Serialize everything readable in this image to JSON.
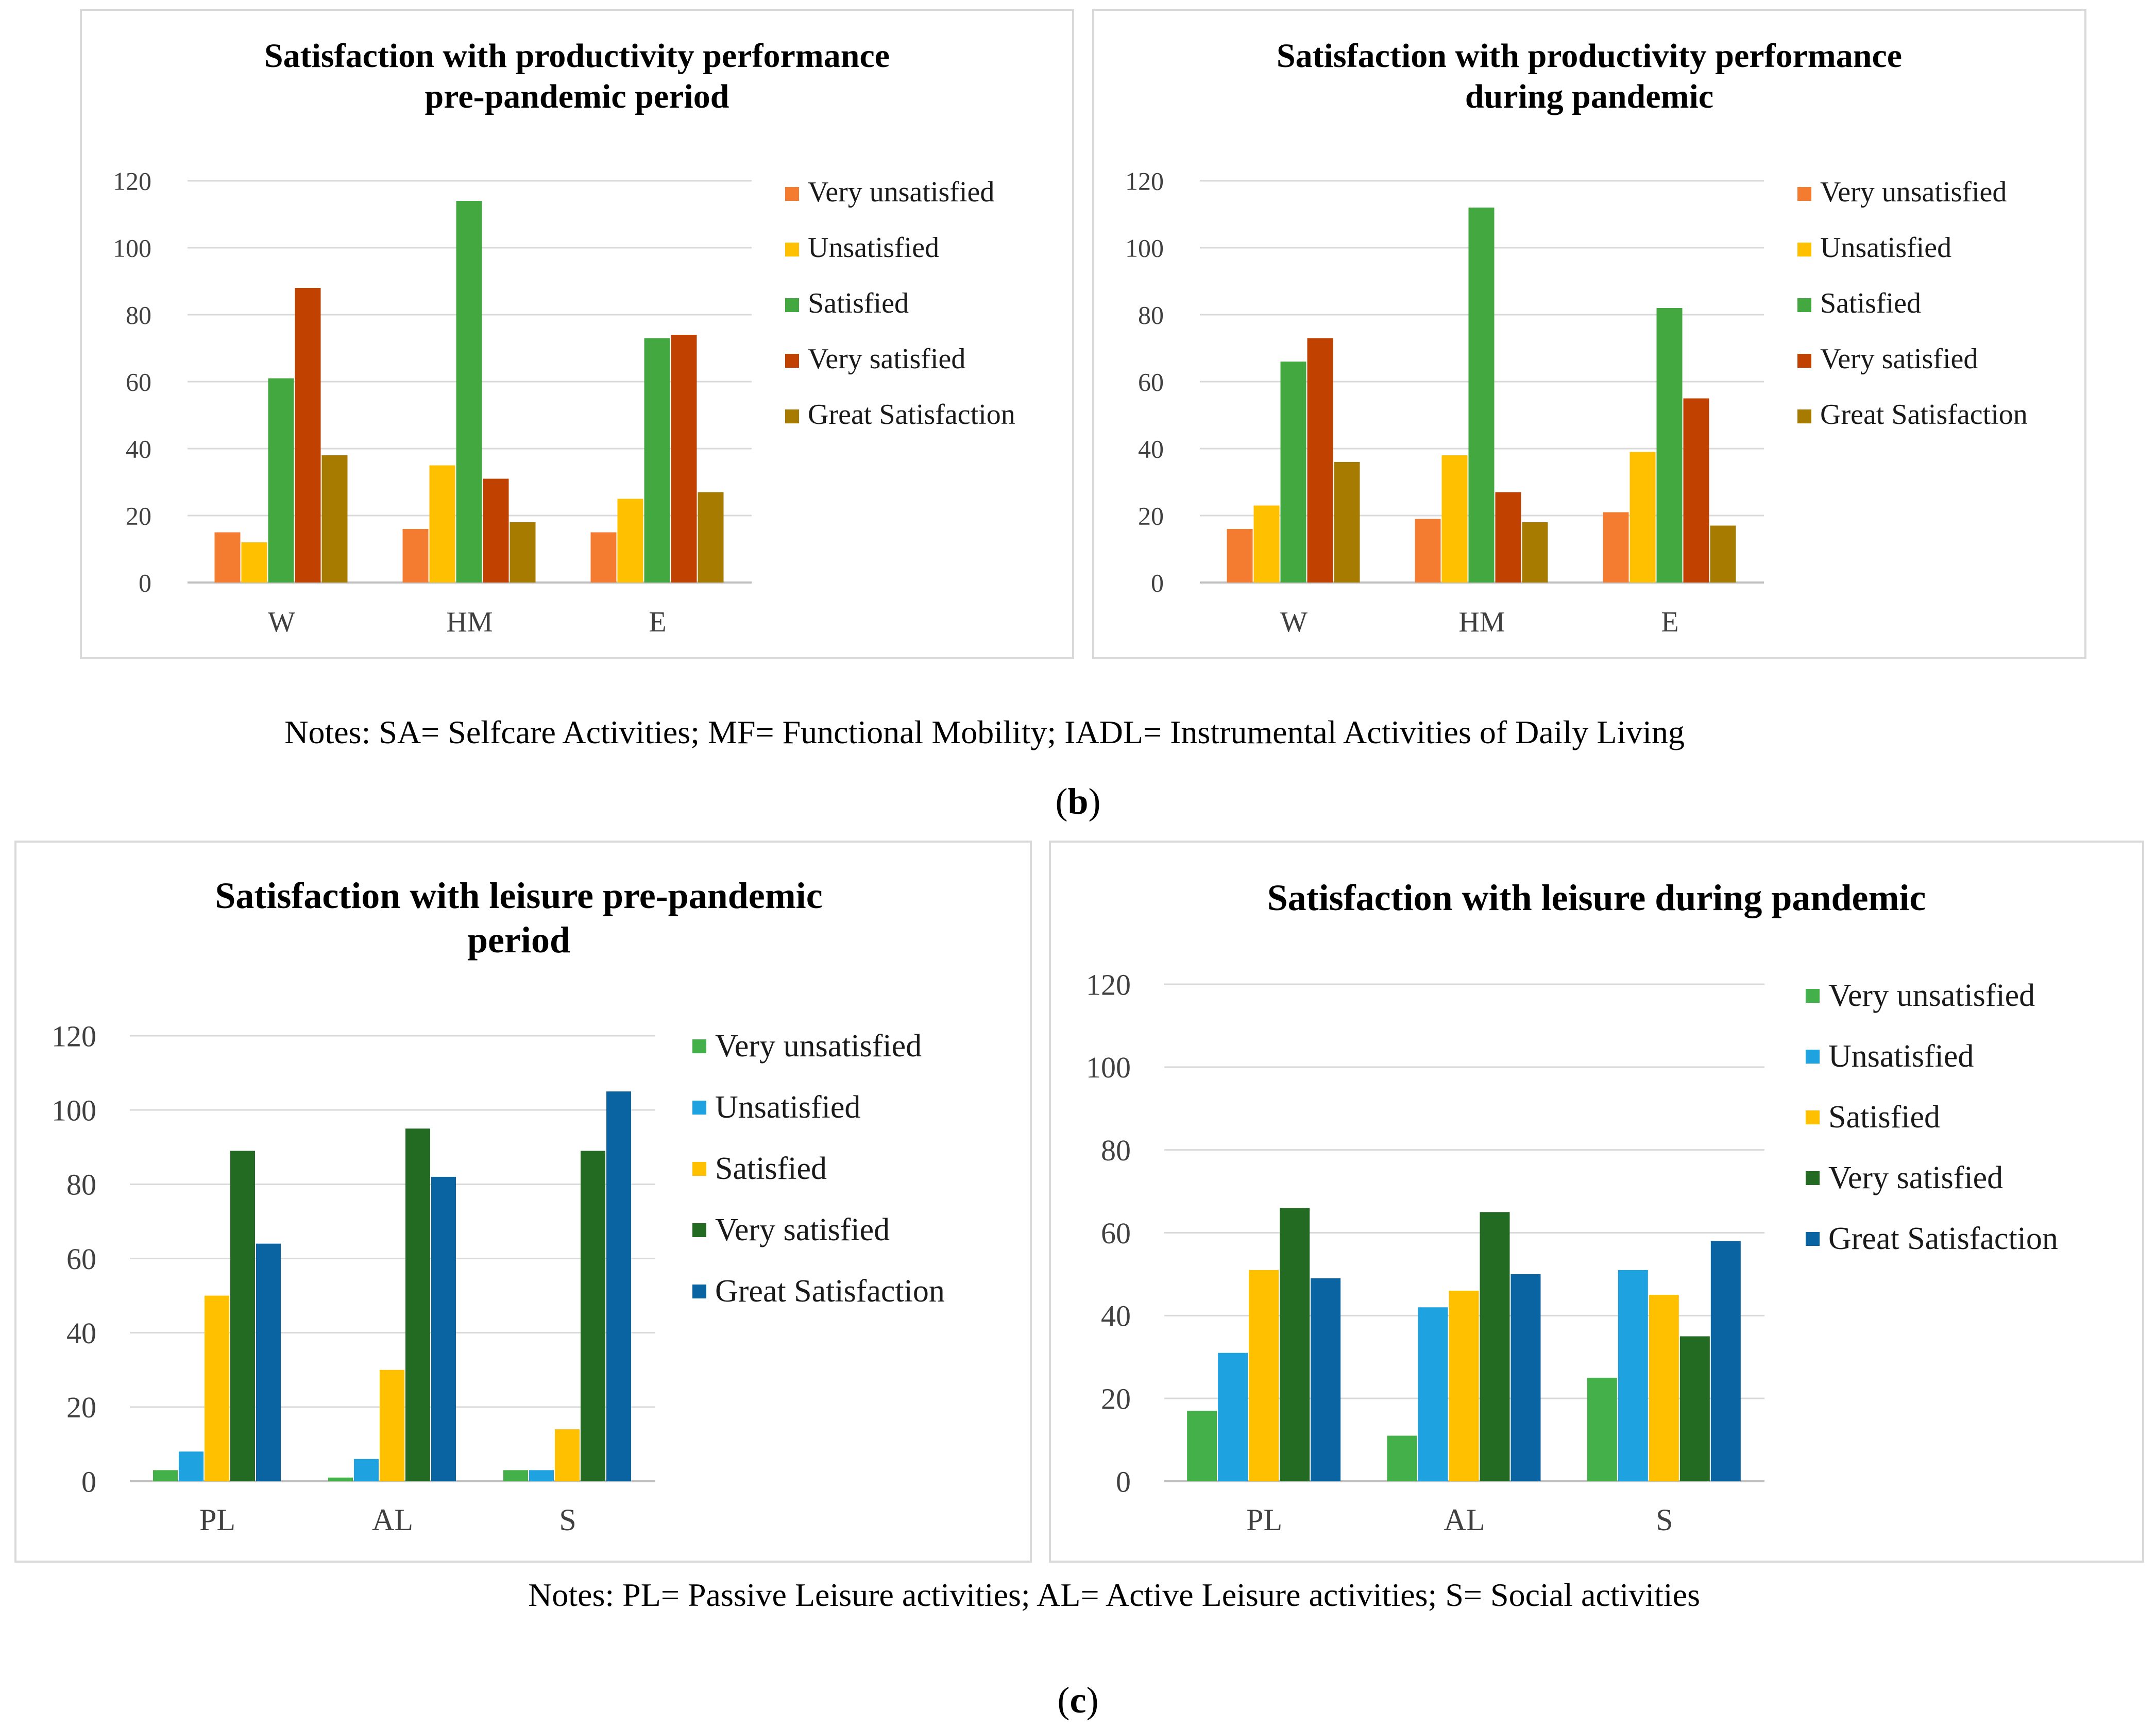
{
  "notes": {
    "b": "Notes: SA= Selfcare Activities; MF= Functional Mobility; IADL= Instrumental Activities of Daily Living",
    "c": "Notes: PL= Passive Leisure activities; AL= Active Leisure activities; S= Social activities"
  },
  "panel_labels": {
    "b_open": "(",
    "b_letter": "b",
    "b_close": ")",
    "c_open": "(",
    "c_letter": "c",
    "c_close": ")"
  },
  "chart_data": [
    {
      "type": "bar",
      "title": "Satisfaction with productivity performance pre-pandemic period",
      "title_lines": [
        "Satisfaction with productivity performance",
        "pre-pandemic period"
      ],
      "categories": [
        "W",
        "HM",
        "E"
      ],
      "ylim": [
        0,
        120
      ],
      "yticks": [
        "0",
        "20",
        "40",
        "60",
        "80",
        "100",
        "120"
      ],
      "grid": true,
      "legend_position": "right",
      "series": [
        {
          "name": "Very unsatisfied",
          "color": "#f47c30",
          "values": [
            15,
            16,
            15
          ]
        },
        {
          "name": "Unsatisfied",
          "color": "#ffc000",
          "values": [
            12,
            35,
            25
          ]
        },
        {
          "name": "Satisfied",
          "color": "#43a840",
          "values": [
            61,
            114,
            73
          ]
        },
        {
          "name": "Very satisfied",
          "color": "#c04100",
          "values": [
            88,
            31,
            74
          ]
        },
        {
          "name": "Great Satisfaction",
          "color": "#a67b00",
          "values": [
            38,
            18,
            27
          ]
        }
      ]
    },
    {
      "type": "bar",
      "title": "Satisfaction with productivity performance during pandemic",
      "title_lines": [
        "Satisfaction with productivity performance",
        "during pandemic"
      ],
      "categories": [
        "W",
        "HM",
        "E"
      ],
      "ylim": [
        0,
        120
      ],
      "yticks": [
        "0",
        "20",
        "40",
        "60",
        "80",
        "100",
        "120"
      ],
      "grid": true,
      "legend_position": "right",
      "series": [
        {
          "name": "Very unsatisfied",
          "color": "#f47c30",
          "values": [
            16,
            19,
            21
          ]
        },
        {
          "name": "Unsatisfied",
          "color": "#ffc000",
          "values": [
            23,
            38,
            39
          ]
        },
        {
          "name": "Satisfied",
          "color": "#43a840",
          "values": [
            66,
            112,
            82
          ]
        },
        {
          "name": "Very satisfied",
          "color": "#c04100",
          "values": [
            73,
            27,
            55
          ]
        },
        {
          "name": "Great Satisfaction",
          "color": "#a67b00",
          "values": [
            36,
            18,
            17
          ]
        }
      ]
    },
    {
      "type": "bar",
      "title": "Satisfaction with leisure pre-pandemic period",
      "title_lines": [
        "Satisfaction with leisure pre-pandemic",
        "period"
      ],
      "categories": [
        "PL",
        "AL",
        "S"
      ],
      "ylim": [
        0,
        120
      ],
      "yticks": [
        "0",
        "20",
        "40",
        "60",
        "80",
        "100",
        "120"
      ],
      "grid": true,
      "legend_position": "right",
      "series": [
        {
          "name": "Very unsatisfied",
          "color": "#43b04a",
          "values": [
            3,
            1,
            3
          ]
        },
        {
          "name": "Unsatisfied",
          "color": "#1ea3e0",
          "values": [
            8,
            6,
            3
          ]
        },
        {
          "name": "Satisfied",
          "color": "#ffc000",
          "values": [
            50,
            30,
            14
          ]
        },
        {
          "name": "Very satisfied",
          "color": "#236a23",
          "values": [
            89,
            95,
            89
          ]
        },
        {
          "name": "Great Satisfaction",
          "color": "#0b64a2",
          "values": [
            64,
            82,
            105
          ]
        }
      ]
    },
    {
      "type": "bar",
      "title": "Satisfaction with leisure during pandemic",
      "title_lines": [
        "Satisfaction with leisure during pandemic"
      ],
      "categories": [
        "PL",
        "AL",
        "S"
      ],
      "ylim": [
        0,
        120
      ],
      "yticks": [
        "0",
        "20",
        "40",
        "60",
        "80",
        "100",
        "120"
      ],
      "grid": true,
      "legend_position": "right",
      "series": [
        {
          "name": "Very unsatisfied",
          "color": "#43b04a",
          "values": [
            17,
            11,
            25
          ]
        },
        {
          "name": "Unsatisfied",
          "color": "#1ea3e0",
          "values": [
            31,
            42,
            51
          ]
        },
        {
          "name": "Satisfied",
          "color": "#ffc000",
          "values": [
            51,
            46,
            45
          ]
        },
        {
          "name": "Very satisfied",
          "color": "#236a23",
          "values": [
            66,
            65,
            35
          ]
        },
        {
          "name": "Great Satisfaction",
          "color": "#0b64a2",
          "values": [
            49,
            50,
            58
          ]
        }
      ]
    }
  ]
}
